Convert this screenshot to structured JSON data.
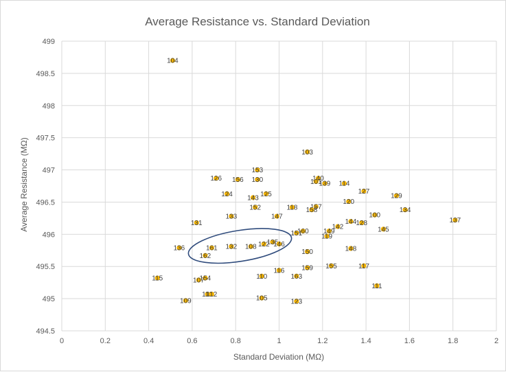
{
  "chart_data": {
    "type": "scatter",
    "title": "Average Resistance vs. Standard Deviation",
    "xlabel": "Standard Deviation (MΩ)",
    "ylabel": "Average Resistance (MΩ)",
    "xlim": [
      0,
      2
    ],
    "ylim": [
      494.5,
      499
    ],
    "x_ticks": [
      "0",
      "0.2",
      "0.4",
      "0.6",
      "0.8",
      "1",
      "1.2",
      "1.4",
      "1.6",
      "1.8",
      "2"
    ],
    "y_ticks": [
      "494.5",
      "495",
      "495.5",
      "496",
      "496.5",
      "497",
      "497.5",
      "498",
      "498.5",
      "499"
    ],
    "grid": true,
    "marker_color": "#f5b400",
    "annotation_color": "#2f4b7c",
    "annotation": {
      "type": "ellipse",
      "center": [
        0.82,
        495.82
      ],
      "rx_data": 0.24,
      "ry_data": 0.24
    },
    "points": [
      {
        "label": "104",
        "x": 0.51,
        "y": 498.7
      },
      {
        "label": "103",
        "x": 1.13,
        "y": 497.28
      },
      {
        "label": "153",
        "x": 0.9,
        "y": 497.0
      },
      {
        "label": "126",
        "x": 0.71,
        "y": 496.87
      },
      {
        "label": "156",
        "x": 0.81,
        "y": 496.85
      },
      {
        "label": "130",
        "x": 0.9,
        "y": 496.85
      },
      {
        "label": "140",
        "x": 1.18,
        "y": 496.87
      },
      {
        "label": "101",
        "x": 1.17,
        "y": 496.82
      },
      {
        "label": "139",
        "x": 1.21,
        "y": 496.79
      },
      {
        "label": "114",
        "x": 1.3,
        "y": 496.79
      },
      {
        "label": "127",
        "x": 1.39,
        "y": 496.67
      },
      {
        "label": "129",
        "x": 1.54,
        "y": 496.6
      },
      {
        "label": "124",
        "x": 0.76,
        "y": 496.63
      },
      {
        "label": "125",
        "x": 0.94,
        "y": 496.63
      },
      {
        "label": "143",
        "x": 0.88,
        "y": 496.57
      },
      {
        "label": "120",
        "x": 1.32,
        "y": 496.51
      },
      {
        "label": "152",
        "x": 0.89,
        "y": 496.42
      },
      {
        "label": "118",
        "x": 1.06,
        "y": 496.42
      },
      {
        "label": "157",
        "x": 1.17,
        "y": 496.43
      },
      {
        "label": "158",
        "x": 1.15,
        "y": 496.38
      },
      {
        "label": "134",
        "x": 1.58,
        "y": 496.38
      },
      {
        "label": "100",
        "x": 1.44,
        "y": 496.3
      },
      {
        "label": "133",
        "x": 0.78,
        "y": 496.28
      },
      {
        "label": "147",
        "x": 0.99,
        "y": 496.28
      },
      {
        "label": "131",
        "x": 0.62,
        "y": 496.18
      },
      {
        "label": "144",
        "x": 1.33,
        "y": 496.2
      },
      {
        "label": "128",
        "x": 1.38,
        "y": 496.18
      },
      {
        "label": "137",
        "x": 1.81,
        "y": 496.22
      },
      {
        "label": "142",
        "x": 1.27,
        "y": 496.12
      },
      {
        "label": "145",
        "x": 1.48,
        "y": 496.08
      },
      {
        "label": "160",
        "x": 1.11,
        "y": 496.05
      },
      {
        "label": "151",
        "x": 1.08,
        "y": 496.02
      },
      {
        "label": "149",
        "x": 1.23,
        "y": 496.05
      },
      {
        "label": "119",
        "x": 1.22,
        "y": 495.97
      },
      {
        "label": "135",
        "x": 0.97,
        "y": 495.88
      },
      {
        "label": "122",
        "x": 0.93,
        "y": 495.85
      },
      {
        "label": "146",
        "x": 1.0,
        "y": 495.85
      },
      {
        "label": "132",
        "x": 0.78,
        "y": 495.81
      },
      {
        "label": "108",
        "x": 0.87,
        "y": 495.81
      },
      {
        "label": "161",
        "x": 0.69,
        "y": 495.79
      },
      {
        "label": "136",
        "x": 0.54,
        "y": 495.79
      },
      {
        "label": "148",
        "x": 1.33,
        "y": 495.78
      },
      {
        "label": "150",
        "x": 1.13,
        "y": 495.73
      },
      {
        "label": "162",
        "x": 0.66,
        "y": 495.67
      },
      {
        "label": "155",
        "x": 1.24,
        "y": 495.51
      },
      {
        "label": "117",
        "x": 1.39,
        "y": 495.51
      },
      {
        "label": "159",
        "x": 1.13,
        "y": 495.48
      },
      {
        "label": "116",
        "x": 1.0,
        "y": 495.44
      },
      {
        "label": "110",
        "x": 0.92,
        "y": 495.35
      },
      {
        "label": "163",
        "x": 1.08,
        "y": 495.35
      },
      {
        "label": "115",
        "x": 0.44,
        "y": 495.32
      },
      {
        "label": "154",
        "x": 0.66,
        "y": 495.32
      },
      {
        "label": "107",
        "x": 0.63,
        "y": 495.29
      },
      {
        "label": "111",
        "x": 1.45,
        "y": 495.2
      },
      {
        "label": "113",
        "x": 0.67,
        "y": 495.07
      },
      {
        "label": "112",
        "x": 0.69,
        "y": 495.07
      },
      {
        "label": "105",
        "x": 0.92,
        "y": 495.01
      },
      {
        "label": "109",
        "x": 0.57,
        "y": 494.97
      },
      {
        "label": "123",
        "x": 1.08,
        "y": 494.96
      }
    ]
  }
}
